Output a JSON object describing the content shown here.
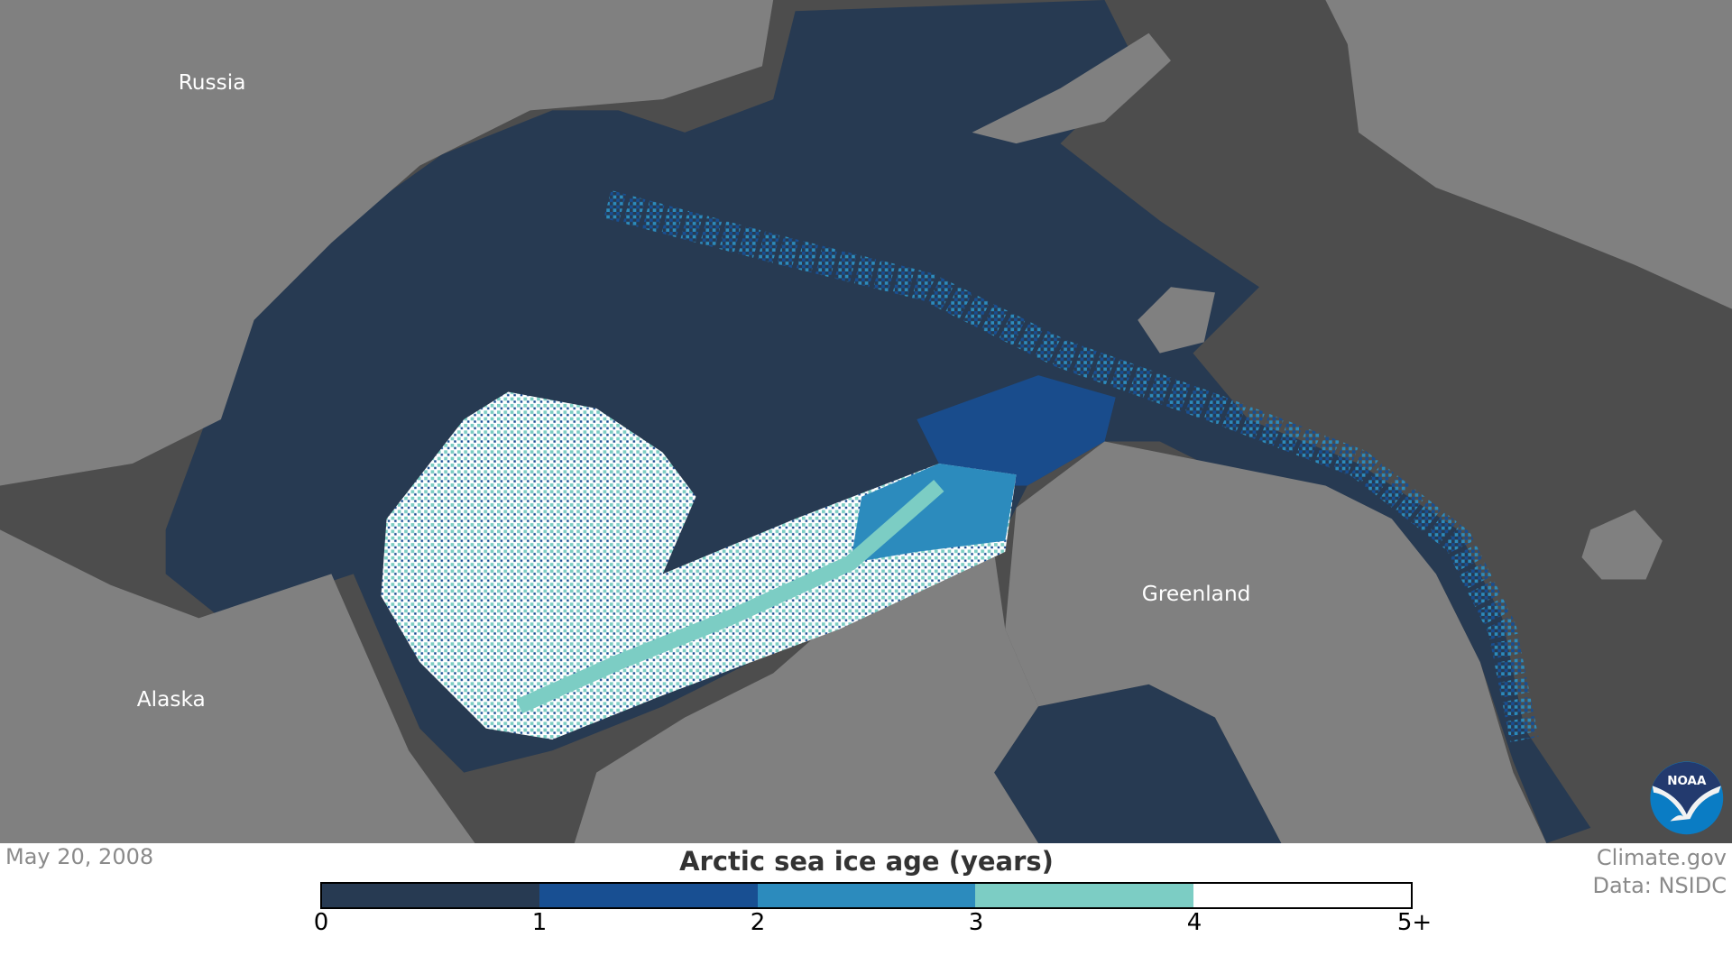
{
  "map": {
    "labels": {
      "russia": "Russia",
      "alaska": "Alaska",
      "greenland": "Greenland"
    },
    "logo": "NOAA",
    "colors": {
      "land": "#808080",
      "ocean": "#4d4d4d",
      "ice_0_1": "#273a52",
      "ice_1_2": "#184f92",
      "ice_2_3": "#2c8bbd",
      "ice_3_4": "#7ccdc4",
      "ice_5plus": "#ffffff"
    }
  },
  "date": "May 20, 2008",
  "credit": {
    "line1": "Climate.gov",
    "line2": "Data: NSIDC"
  },
  "legend": {
    "title": "Arctic sea ice age (years)",
    "ticks": [
      "0",
      "1",
      "2",
      "3",
      "4",
      "5+"
    ],
    "colors": [
      "#273a52",
      "#184f92",
      "#2c8bbd",
      "#7ccdc4",
      "#ffffff"
    ]
  }
}
